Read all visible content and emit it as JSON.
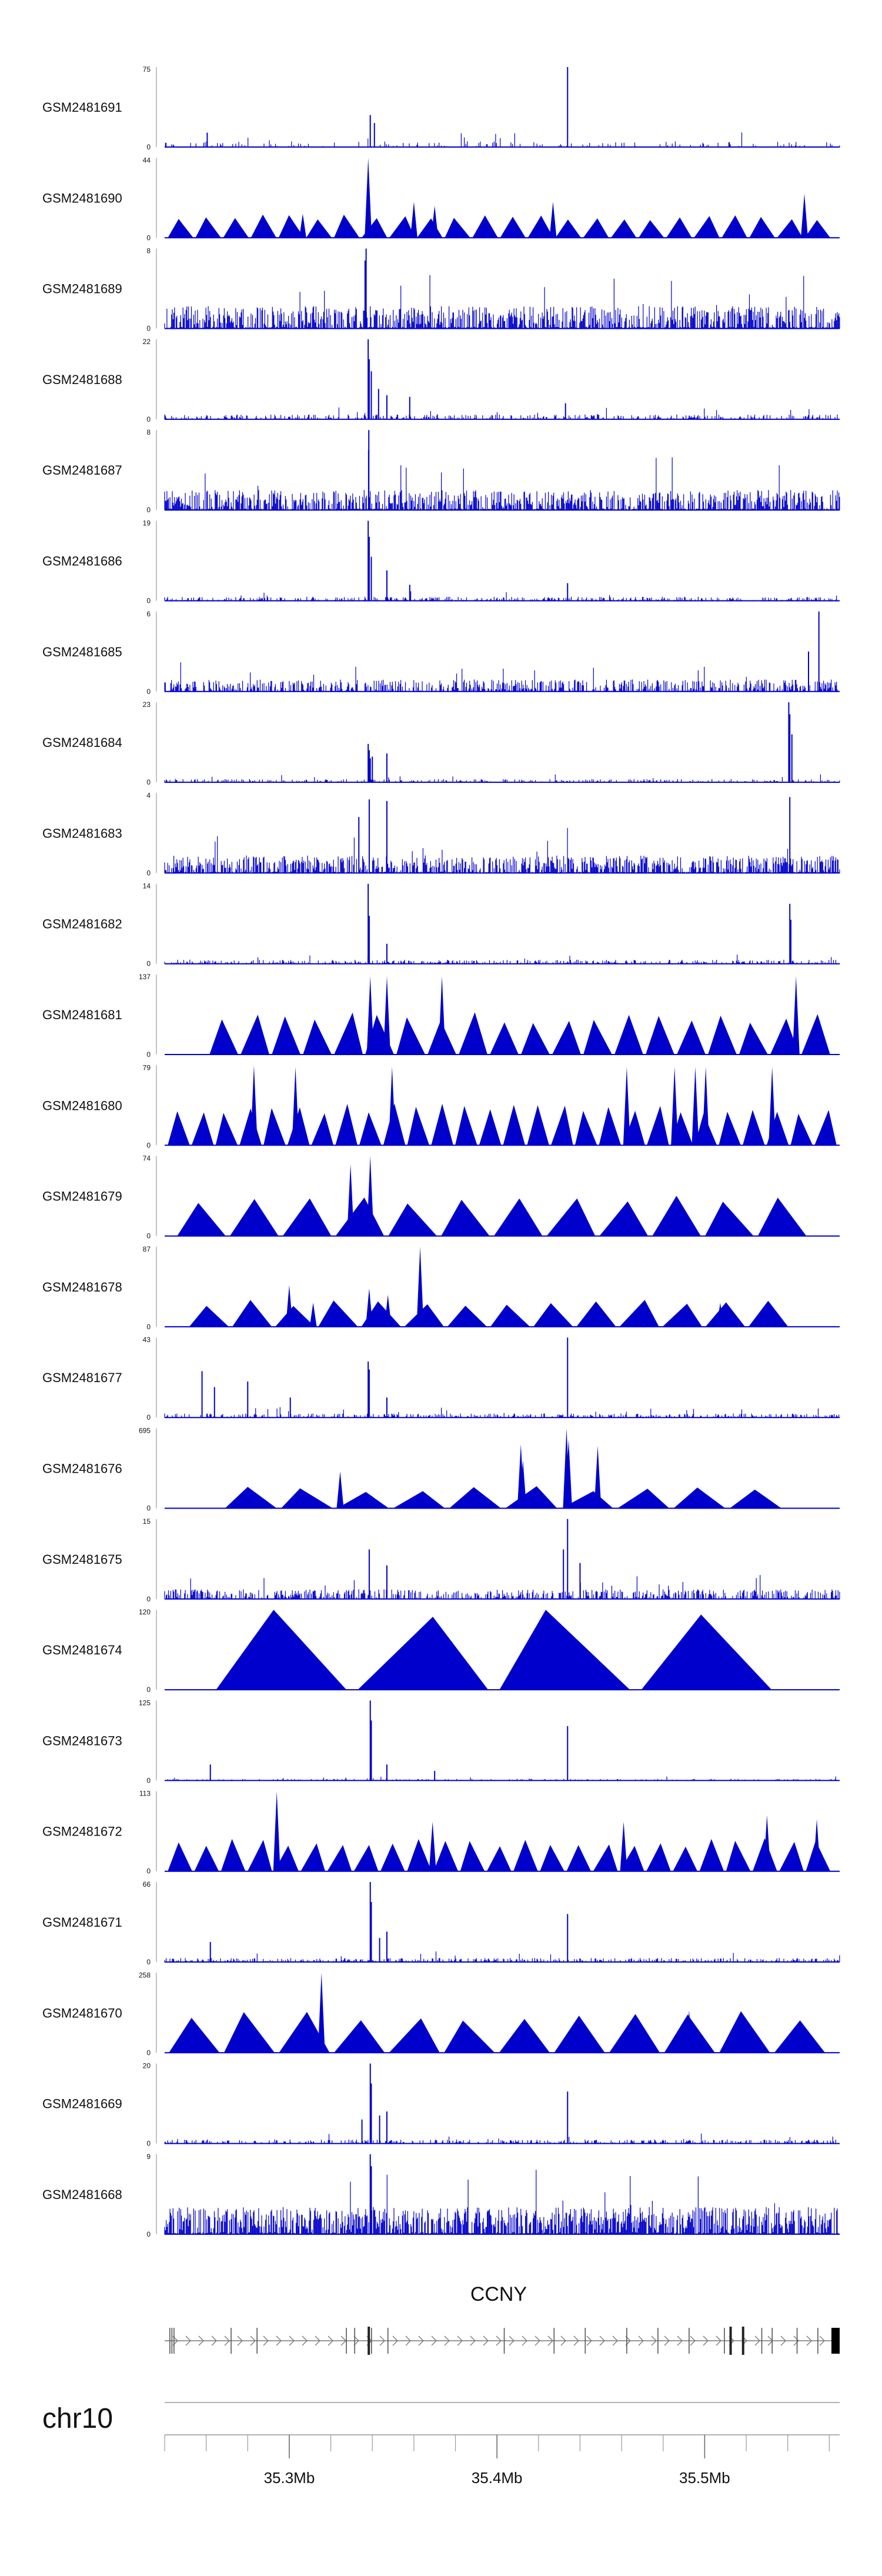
{
  "chart_data": {
    "type": "area",
    "chromosome": "chr10",
    "gene": "CCNY",
    "x_range_mb": [
      35.24,
      35.565
    ],
    "x_ticks": [
      "35.3Mb",
      "35.4Mb",
      "35.5Mb"
    ],
    "x_tick_values": [
      35.3,
      35.4,
      35.5
    ],
    "tracks": [
      {
        "name": "GSM2481691",
        "ymax": "75",
        "ymin": "0",
        "peak": 75,
        "style": "noise",
        "base": 0.07,
        "density": 0.12,
        "seed": 11,
        "peaks": [
          [
            35.339,
            0.4
          ],
          [
            35.341,
            0.3
          ],
          [
            35.434,
            1.0
          ],
          [
            35.2605,
            0.18
          ]
        ]
      },
      {
        "name": "GSM2481690",
        "ymax": "44",
        "ymin": "0",
        "peak": 44,
        "style": "tri",
        "seed": 21,
        "tri_from": 35.241,
        "tri_to": 35.561,
        "tri_n": 24,
        "tri_h": 0.26,
        "peaks": [
          [
            35.338,
            1.0
          ],
          [
            35.3065,
            0.3
          ],
          [
            35.36,
            0.45
          ],
          [
            35.427,
            0.45
          ],
          [
            35.548,
            0.55
          ],
          [
            35.37,
            0.4
          ]
        ]
      },
      {
        "name": "GSM2481689",
        "ymax": "8",
        "ymin": "0",
        "peak": 8,
        "style": "noise",
        "base": 0.28,
        "density": 0.6,
        "seed": 31,
        "peaks": [
          [
            35.337,
            1.0
          ],
          [
            35.3365,
            0.85
          ]
        ]
      },
      {
        "name": "GSM2481688",
        "ymax": "22",
        "ymin": "0",
        "peak": 22,
        "style": "noise",
        "base": 0.06,
        "density": 0.35,
        "seed": 41,
        "peaks": [
          [
            35.338,
            1.0
          ],
          [
            35.3385,
            0.75
          ],
          [
            35.3395,
            0.6
          ],
          [
            35.343,
            0.38
          ],
          [
            35.347,
            0.3
          ],
          [
            35.358,
            0.28
          ],
          [
            35.433,
            0.2
          ]
        ]
      },
      {
        "name": "GSM2481687",
        "ymax": "8",
        "ymin": "0",
        "peak": 8,
        "style": "noise",
        "base": 0.25,
        "density": 0.6,
        "seed": 51,
        "peaks": [
          [
            35.3383,
            1.0
          ],
          [
            35.3382,
            0.75
          ]
        ]
      },
      {
        "name": "GSM2481686",
        "ymax": "19",
        "ymin": "0",
        "peak": 19,
        "style": "noise",
        "base": 0.05,
        "density": 0.35,
        "seed": 61,
        "peaks": [
          [
            35.338,
            1.0
          ],
          [
            35.3385,
            0.8
          ],
          [
            35.3395,
            0.55
          ],
          [
            35.347,
            0.38
          ],
          [
            35.358,
            0.2
          ],
          [
            35.434,
            0.22
          ]
        ]
      },
      {
        "name": "GSM2481685",
        "ymax": "6",
        "ymin": "0",
        "peak": 6,
        "style": "noise",
        "base": 0.15,
        "density": 0.5,
        "seed": 71,
        "peaks": [
          [
            35.555,
            1.0
          ],
          [
            35.55,
            0.5
          ]
        ]
      },
      {
        "name": "GSM2481684",
        "ymax": "23",
        "ymin": "0",
        "peak": 23,
        "style": "noise",
        "base": 0.04,
        "density": 0.3,
        "seed": 81,
        "peaks": [
          [
            35.338,
            0.48
          ],
          [
            35.3385,
            0.4
          ],
          [
            35.34,
            0.32
          ],
          [
            35.347,
            0.36
          ],
          [
            35.5405,
            1.0
          ],
          [
            35.541,
            0.85
          ],
          [
            35.542,
            0.6
          ],
          [
            35.339,
            0.3
          ]
        ]
      },
      {
        "name": "GSM2481683",
        "ymax": "4",
        "ymin": "0",
        "peak": 4,
        "style": "noise",
        "base": 0.22,
        "density": 0.6,
        "seed": 91,
        "peaks": [
          [
            35.541,
            0.95
          ],
          [
            35.3385,
            0.92
          ],
          [
            35.347,
            0.9
          ],
          [
            35.3335,
            0.7
          ]
        ]
      },
      {
        "name": "GSM2481682",
        "ymax": "14",
        "ymin": "0",
        "peak": 14,
        "style": "noise",
        "base": 0.05,
        "density": 0.35,
        "seed": 101,
        "peaks": [
          [
            35.338,
            1.0
          ],
          [
            35.3385,
            0.6
          ],
          [
            35.541,
            0.75
          ],
          [
            35.5415,
            0.55
          ],
          [
            35.347,
            0.25
          ]
        ]
      },
      {
        "name": "GSM2481681",
        "ymax": "137",
        "ymin": "0",
        "peak": 137,
        "style": "tri",
        "seed": 111,
        "tri_from": 35.261,
        "tri_to": 35.561,
        "tri_n": 20,
        "tri_h": 0.46,
        "peaks": [
          [
            35.339,
            0.98
          ],
          [
            35.347,
            0.98
          ],
          [
            35.544,
            0.98
          ],
          [
            35.3735,
            0.98
          ]
        ]
      },
      {
        "name": "GSM2481680",
        "ymax": "79",
        "ymin": "0",
        "peak": 79,
        "style": "tri",
        "seed": 121,
        "tri_from": 35.241,
        "tri_to": 35.564,
        "tri_n": 28,
        "tri_h": 0.46,
        "peaks": [
          [
            35.283,
            1.0
          ],
          [
            35.3495,
            0.98
          ],
          [
            35.4855,
            0.98
          ],
          [
            35.4955,
            0.98
          ],
          [
            35.5005,
            0.98
          ],
          [
            35.5325,
            0.98
          ],
          [
            35.4625,
            0.98
          ],
          [
            35.303,
            0.98
          ]
        ]
      },
      {
        "name": "GSM2481679",
        "ymax": "74",
        "ymin": "0",
        "peak": 74,
        "style": "tri",
        "seed": 131,
        "tri_from": 35.245,
        "tri_to": 35.55,
        "tri_n": 12,
        "tri_h": 0.46,
        "peaks": [
          [
            35.339,
            1.0
          ],
          [
            35.3295,
            0.9
          ]
        ]
      },
      {
        "name": "GSM2481678",
        "ymax": "87",
        "ymin": "0",
        "peak": 87,
        "style": "tri",
        "seed": 141,
        "tri_from": 35.251,
        "tri_to": 35.541,
        "tri_n": 14,
        "tri_h": 0.3,
        "peaks": [
          [
            35.363,
            1.0
          ],
          [
            35.3,
            0.52
          ],
          [
            35.3385,
            0.48
          ],
          [
            35.3475,
            0.4
          ],
          [
            35.5075,
            0.3
          ],
          [
            35.3115,
            0.3
          ]
        ]
      },
      {
        "name": "GSM2481677",
        "ymax": "43",
        "ymin": "0",
        "peak": 43,
        "style": "noise",
        "base": 0.05,
        "density": 0.35,
        "seed": 151,
        "peaks": [
          [
            35.434,
            1.0
          ],
          [
            35.338,
            0.7
          ],
          [
            35.3385,
            0.6
          ],
          [
            35.258,
            0.58
          ],
          [
            35.264,
            0.38
          ],
          [
            35.28,
            0.45
          ],
          [
            35.347,
            0.25
          ],
          [
            35.3005,
            0.25
          ]
        ]
      },
      {
        "name": "GSM2481676",
        "ymax": "695",
        "ymin": "0",
        "peak": 695,
        "style": "tri",
        "seed": 161,
        "tri_from": 35.268,
        "tri_to": 35.538,
        "tri_n": 10,
        "tri_h": 0.24,
        "peaks": [
          [
            35.4335,
            1.0
          ],
          [
            35.4345,
            0.86
          ],
          [
            35.4485,
            0.78
          ],
          [
            35.3245,
            0.46
          ],
          [
            35.4115,
            0.8
          ],
          [
            35.4125,
            0.6
          ]
        ]
      },
      {
        "name": "GSM2481675",
        "ymax": "15",
        "ymin": "0",
        "peak": 15,
        "style": "noise",
        "base": 0.12,
        "density": 0.5,
        "seed": 171,
        "peaks": [
          [
            35.434,
            1.0
          ],
          [
            35.3385,
            0.62
          ],
          [
            35.347,
            0.42
          ],
          [
            35.432,
            0.62
          ],
          [
            35.44,
            0.45
          ]
        ]
      },
      {
        "name": "GSM2481674",
        "ymax": "120",
        "ymin": "0",
        "peak": 120,
        "style": "tri",
        "seed": 181,
        "tri_from": 35.262,
        "tri_to": 35.535,
        "tri_n": 4,
        "tri_h": 0.95,
        "peaks": []
      },
      {
        "name": "GSM2481673",
        "ymax": "125",
        "ymin": "0",
        "peak": 125,
        "style": "noise",
        "base": 0.02,
        "density": 0.25,
        "seed": 191,
        "peaks": [
          [
            35.339,
            1.0
          ],
          [
            35.3395,
            0.75
          ],
          [
            35.434,
            0.68
          ],
          [
            35.347,
            0.2
          ],
          [
            35.262,
            0.2
          ],
          [
            35.37,
            0.12
          ]
        ]
      },
      {
        "name": "GSM2481672",
        "ymax": "113",
        "ymin": "0",
        "peak": 113,
        "style": "tri",
        "seed": 201,
        "tri_from": 35.241,
        "tri_to": 35.561,
        "tri_n": 25,
        "tri_h": 0.36,
        "peaks": [
          [
            35.294,
            1.0
          ],
          [
            35.53,
            0.7
          ],
          [
            35.554,
            0.65
          ],
          [
            35.461,
            0.62
          ],
          [
            35.369,
            0.62
          ]
        ]
      },
      {
        "name": "GSM2481671",
        "ymax": "66",
        "ymin": "0",
        "peak": 66,
        "style": "noise",
        "base": 0.05,
        "density": 0.35,
        "seed": 211,
        "peaks": [
          [
            35.339,
            1.0
          ],
          [
            35.3395,
            0.75
          ],
          [
            35.434,
            0.6
          ],
          [
            35.347,
            0.38
          ],
          [
            35.262,
            0.25
          ],
          [
            35.3435,
            0.3
          ]
        ]
      },
      {
        "name": "GSM2481670",
        "ymax": "258",
        "ymin": "0",
        "peak": 258,
        "style": "tri",
        "seed": 221,
        "tri_from": 35.241,
        "tri_to": 35.559,
        "tri_n": 12,
        "tri_h": 0.46,
        "peaks": [
          [
            35.3155,
            1.0
          ],
          [
            35.4925,
            0.53
          ]
        ]
      },
      {
        "name": "GSM2481669",
        "ymax": "20",
        "ymin": "0",
        "peak": 20,
        "style": "noise",
        "base": 0.05,
        "density": 0.35,
        "seed": 231,
        "peaks": [
          [
            35.339,
            1.0
          ],
          [
            35.3395,
            0.75
          ],
          [
            35.434,
            0.65
          ],
          [
            35.347,
            0.4
          ],
          [
            35.335,
            0.3
          ],
          [
            35.3435,
            0.35
          ]
        ]
      },
      {
        "name": "GSM2481668",
        "ymax": "9",
        "ymin": "0",
        "peak": 9,
        "style": "noise",
        "base": 0.34,
        "density": 0.7,
        "seed": 241,
        "peaks": [
          [
            35.339,
            1.0
          ],
          [
            35.3395,
            0.85
          ]
        ]
      }
    ],
    "gene_track": {
      "name": "CCNY",
      "start_mb": 35.24,
      "end_mb": 35.565,
      "exons_mb": [
        35.2425,
        35.2435,
        35.2445,
        35.272,
        35.2845,
        35.3275,
        35.3315,
        35.3383,
        35.3396,
        35.3475,
        35.4035,
        35.4275,
        35.4425,
        35.4625,
        35.4775,
        35.4925,
        35.5095,
        35.5125,
        35.5185,
        35.5275,
        35.5325,
        35.5445,
        35.5545
      ],
      "big_exons_mb": [
        35.3383,
        35.5125,
        35.5185
      ]
    },
    "x_axis_label": "chr10",
    "xlabel": "",
    "ylabel": ""
  }
}
